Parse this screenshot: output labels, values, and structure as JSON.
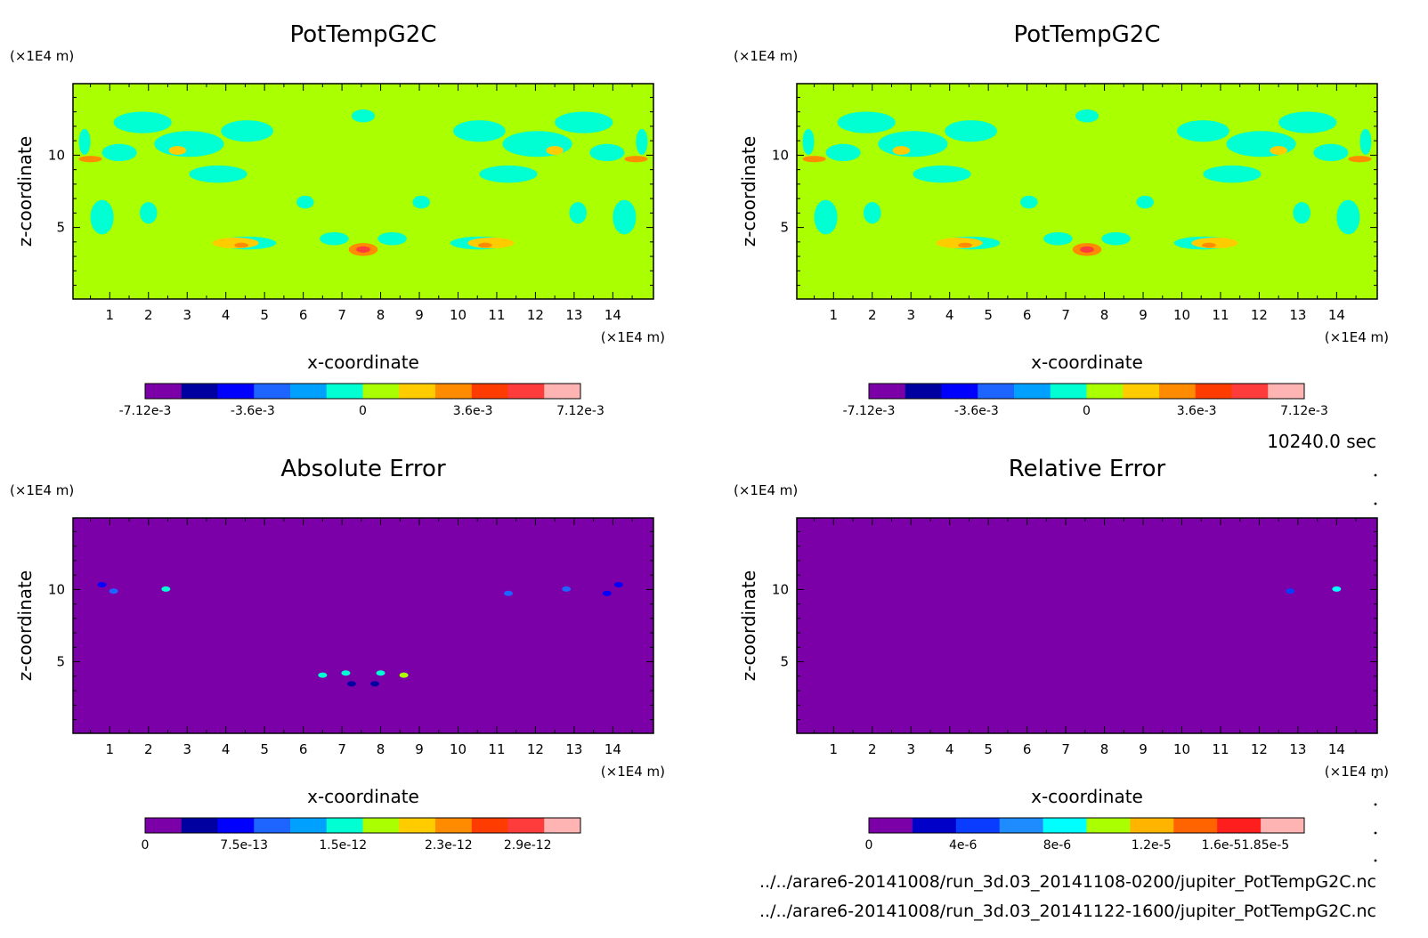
{
  "time_label": "10240.0 sec",
  "file_paths": [
    "../../arare6-20141008/run_3d.03_20141108-0200/jupiter_PotTempG2C.nc",
    "../../arare6-20141008/run_3d.03_20141122-1600/jupiter_PotTempG2C.nc"
  ],
  "colors": {
    "levels_11": [
      "#7b00a8",
      "#0000a0",
      "#0000ff",
      "#1e64ff",
      "#00a0ff",
      "#00ffd2",
      "#aaff00",
      "#ffcc00",
      "#ff8c00",
      "#ff3c00",
      "#ff3c3c",
      "#ffb4b4"
    ],
    "levels_err": [
      "#7b00a8",
      "#0000c8",
      "#0a3cff",
      "#1e8cff",
      "#00ffff",
      "#aaff00",
      "#ffb400",
      "#ff6400",
      "#ff1e1e",
      "#ffb4b4"
    ],
    "background_field": "#aaff00",
    "background_error": "#7b00a8"
  },
  "chart_data": [
    {
      "type": "heatmap",
      "title": "PotTempG2C",
      "xlabel": "x-coordinate",
      "ylabel": "z-coordinate",
      "x_unit": "(×1E4 m)",
      "y_unit": "(×1E4 m)",
      "xlim": [
        0.05,
        15.05
      ],
      "ylim": [
        0.05,
        14.95
      ],
      "x_ticks": [
        "1",
        "2",
        "3",
        "4",
        "5",
        "6",
        "7",
        "8",
        "9",
        "10",
        "11",
        "12",
        "13",
        "14"
      ],
      "y_ticks": [
        "5",
        "10"
      ],
      "colorbar_labels": [
        "-7.12e-3",
        "-3.6e-3",
        "0",
        "3.6e-3",
        "7.12e-3"
      ],
      "colorbar_label_positions": [
        -0.00712,
        -0.0036,
        0,
        0.0036,
        0.00712
      ],
      "colorbar_range": [
        -0.00712,
        0.00712
      ],
      "colorbar_colors": "levels_11"
    },
    {
      "type": "heatmap",
      "title": "PotTempG2C",
      "xlabel": "x-coordinate",
      "ylabel": "z-coordinate",
      "x_unit": "(×1E4 m)",
      "y_unit": "(×1E4 m)",
      "xlim": [
        0.05,
        15.05
      ],
      "ylim": [
        0.05,
        14.95
      ],
      "x_ticks": [
        "1",
        "2",
        "3",
        "4",
        "5",
        "6",
        "7",
        "8",
        "9",
        "10",
        "11",
        "12",
        "13",
        "14"
      ],
      "y_ticks": [
        "5",
        "10"
      ],
      "colorbar_labels": [
        "-7.12e-3",
        "-3.6e-3",
        "0",
        "3.6e-3",
        "7.12e-3"
      ],
      "colorbar_label_positions": [
        -0.00712,
        -0.0036,
        0,
        0.0036,
        0.00712
      ],
      "colorbar_range": [
        -0.00712,
        0.00712
      ],
      "colorbar_colors": "levels_11"
    },
    {
      "type": "heatmap",
      "title": "Absolute Error",
      "xlabel": "x-coordinate",
      "ylabel": "z-coordinate",
      "x_unit": "(×1E4 m)",
      "y_unit": "(×1E4 m)",
      "xlim": [
        0.05,
        15.05
      ],
      "ylim": [
        0.05,
        14.95
      ],
      "x_ticks": [
        "1",
        "2",
        "3",
        "4",
        "5",
        "6",
        "7",
        "8",
        "9",
        "10",
        "11",
        "12",
        "13",
        "14"
      ],
      "y_ticks": [
        "5",
        "10"
      ],
      "colorbar_labels": [
        "0",
        "7.5e-13",
        "1.5e-12",
        "2.3e-12",
        "2.9e-12"
      ],
      "colorbar_label_positions": [
        0,
        7.5e-13,
        1.5e-12,
        2.3e-12,
        2.9e-12
      ],
      "colorbar_range": [
        0,
        3.3e-12
      ],
      "colorbar_colors": "levels_11"
    },
    {
      "type": "heatmap",
      "title": "Relative Error",
      "xlabel": "x-coordinate",
      "ylabel": "z-coordinate",
      "x_unit": "(×1E4 m)",
      "y_unit": "(×1E4 m)",
      "xlim": [
        0.05,
        15.05
      ],
      "ylim": [
        0.05,
        14.95
      ],
      "x_ticks": [
        "1",
        "2",
        "3",
        "4",
        "5",
        "6",
        "7",
        "8",
        "9",
        "10",
        "11",
        "12",
        "13",
        "14"
      ],
      "y_ticks": [
        "5",
        "10"
      ],
      "colorbar_labels": [
        "0",
        "4e-6",
        "8e-6",
        "1.2e-5",
        "1.6e-51.85e-5"
      ],
      "colorbar_label_positions": [
        0,
        4e-06,
        8e-06,
        1.2e-05,
        1.6e-05
      ],
      "colorbar_range": [
        0,
        1.85e-05
      ],
      "colorbar_colors": "levels_err"
    }
  ]
}
